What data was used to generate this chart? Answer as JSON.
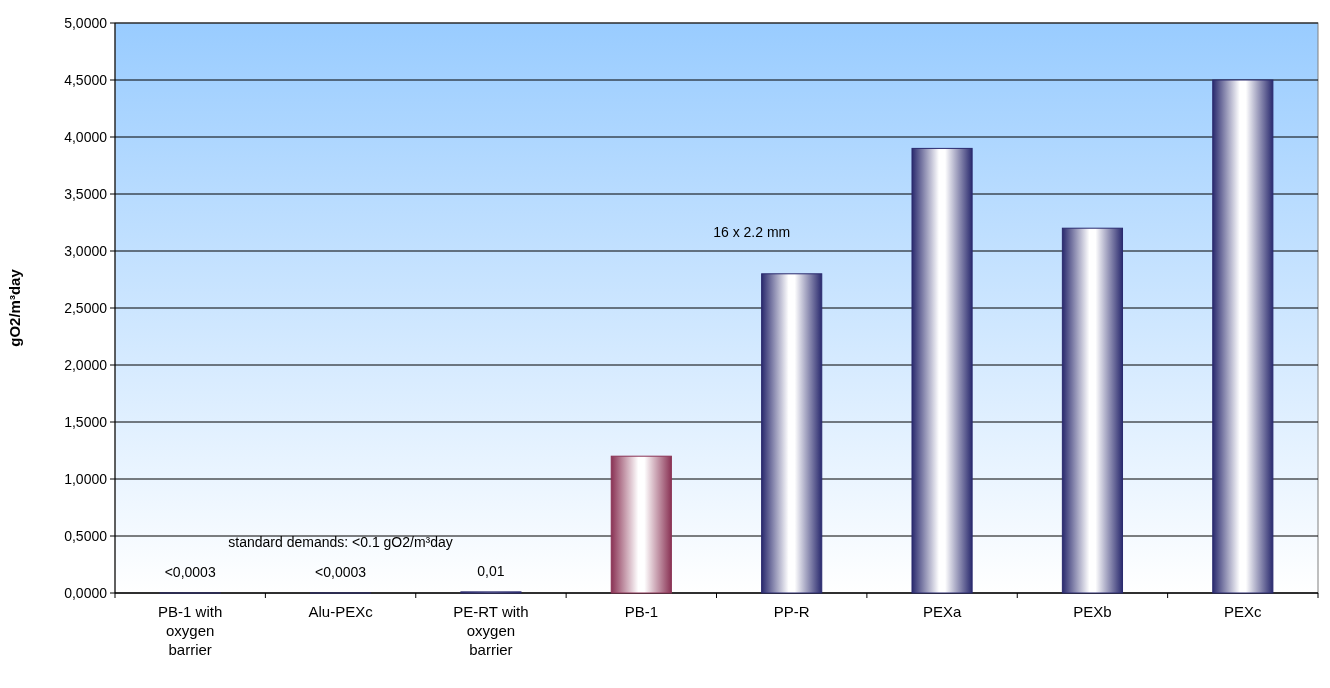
{
  "chart_data": {
    "type": "bar",
    "ylabel": "gO2/m³day",
    "categories": [
      "PB-1 with oxygen barrier",
      "Alu-PEXc",
      "PE-RT with oxygen barrier",
      "PB-1",
      "PP-R",
      "PEXa",
      "PEXb",
      "PEXc"
    ],
    "values": [
      0.0003,
      0.0003,
      0.01,
      1.2,
      2.8,
      3.9,
      3.2,
      4.5
    ],
    "value_labels": [
      "<0,0003",
      "<0,0003",
      "0,01",
      null,
      null,
      null,
      null,
      null
    ],
    "colors": [
      "#2a2a6e",
      "#2a2a6e",
      "#2a2a6e",
      "#8a3355",
      "#2a2a6e",
      "#2a2a6e",
      "#2a2a6e",
      "#2a2a6e"
    ],
    "ylim": [
      0,
      5
    ],
    "yticks": [
      {
        "value": 0,
        "label": "0,0000"
      },
      {
        "value": 0.5,
        "label": "0,5000"
      },
      {
        "value": 1,
        "label": "1,0000"
      },
      {
        "value": 1.5,
        "label": "1,5000"
      },
      {
        "value": 2,
        "label": "2,0000"
      },
      {
        "value": 2.5,
        "label": "2,5000"
      },
      {
        "value": 3,
        "label": "3,0000"
      },
      {
        "value": 3.5,
        "label": "3,5000"
      },
      {
        "value": 4,
        "label": "4,0000"
      },
      {
        "value": 4.5,
        "label": "4,5000"
      },
      {
        "value": 5,
        "label": "5,0000"
      }
    ],
    "grid": "y",
    "annotations": [
      "standard demands: <0.1 gO2/m³day",
      "16 x 2.2 mm"
    ]
  }
}
